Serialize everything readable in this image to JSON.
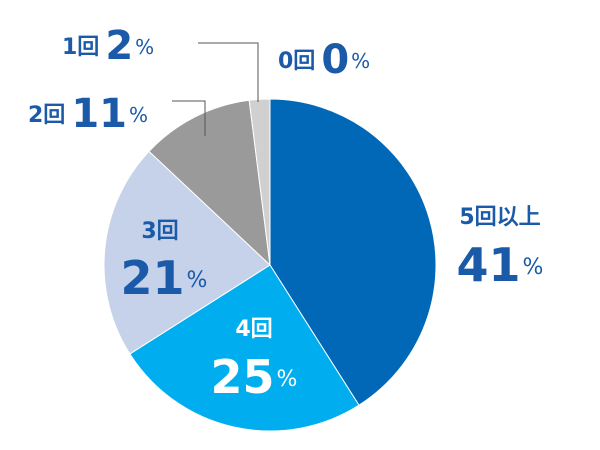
{
  "chart_data": {
    "type": "pie",
    "categories": [
      "5回以上",
      "4回",
      "3回",
      "2回",
      "1回",
      "0回"
    ],
    "values": [
      41,
      25,
      21,
      11,
      2,
      0
    ],
    "unit": "%",
    "colors": [
      "#0068b7",
      "#00aeef",
      "#c5d2ea",
      "#9a9a9a",
      "#d0d0d0",
      "#e8e8e8"
    ]
  }
}
